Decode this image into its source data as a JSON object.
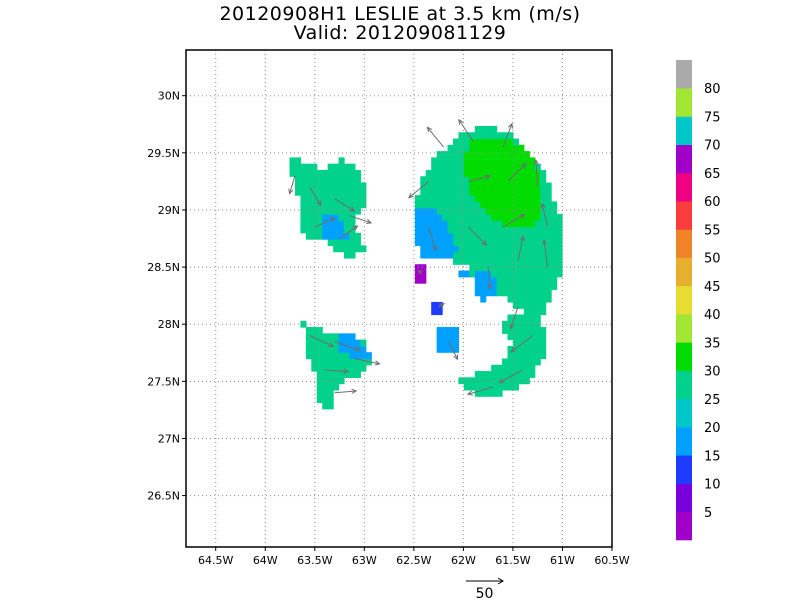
{
  "title_line1": "20120908H1 LESLIE at 3.5 km (m/s)",
  "title_line2": "Valid: 201209081129",
  "chart_data": {
    "type": "heatmap",
    "title": "20120908H1 LESLIE at 3.5 km (m/s)",
    "subtitle": "Valid: 201209081129",
    "xlabel": "",
    "ylabel": "",
    "x_range": [
      -64.8,
      -60.5
    ],
    "y_range": [
      26.05,
      30.4
    ],
    "x_ticks": [
      -64.5,
      -64,
      -63.5,
      -63,
      -62.5,
      -62,
      -61.5,
      -61,
      -60.5
    ],
    "x_tick_labels": [
      "64.5W",
      "64W",
      "63.5W",
      "63W",
      "62.5W",
      "62W",
      "61.5W",
      "61W",
      "60.5W"
    ],
    "y_ticks": [
      26.5,
      27,
      27.5,
      28,
      28.5,
      29,
      29.5,
      30
    ],
    "y_tick_labels": [
      "26.5N",
      "27N",
      "27.5N",
      "28N",
      "28.5N",
      "29N",
      "29.5N",
      "30N"
    ],
    "grid": true,
    "colorbar": {
      "labels": [
        "5",
        "10",
        "15",
        "20",
        "25",
        "30",
        "35",
        "40",
        "45",
        "50",
        "55",
        "60",
        "65",
        "70",
        "75",
        "80"
      ],
      "colors": [
        "#a000c8",
        "#7800dc",
        "#1e3cff",
        "#00a0ff",
        "#00c8c8",
        "#00d28c",
        "#00dc00",
        "#a0e632",
        "#e6dc32",
        "#e6af2d",
        "#f08228",
        "#fa3c3c",
        "#f00082",
        "#a000c8",
        "#00c8c8",
        "#a0e632",
        "#aaaaaa"
      ]
    },
    "reference_vector": {
      "label": "50",
      "value": 50
    },
    "regions": [
      {
        "name": "north-west",
        "value": 26,
        "poly": [
          [
            -63.75,
            29.48
          ],
          [
            -63.62,
            29.42
          ],
          [
            -63.42,
            29.35
          ],
          [
            -63.22,
            29.45
          ],
          [
            -63.08,
            29.38
          ],
          [
            -62.98,
            29.2
          ],
          [
            -63.02,
            29.0
          ],
          [
            -63.1,
            28.9
          ],
          [
            -63.05,
            28.75
          ],
          [
            -62.95,
            28.65
          ],
          [
            -63.2,
            28.58
          ],
          [
            -63.35,
            28.72
          ],
          [
            -63.62,
            28.78
          ],
          [
            -63.62,
            29.0
          ],
          [
            -63.72,
            29.2
          ]
        ]
      },
      {
        "name": "south-west",
        "value": 25,
        "poly": [
          [
            -63.62,
            28.02
          ],
          [
            -63.42,
            27.95
          ],
          [
            -63.18,
            27.9
          ],
          [
            -63.0,
            27.85
          ],
          [
            -62.95,
            27.65
          ],
          [
            -63.05,
            27.55
          ],
          [
            -63.22,
            27.52
          ],
          [
            -63.3,
            27.42
          ],
          [
            -63.35,
            27.25
          ],
          [
            -63.45,
            27.32
          ],
          [
            -63.5,
            27.55
          ],
          [
            -63.6,
            27.75
          ]
        ]
      },
      {
        "name": "north-east",
        "value": 27,
        "poly": [
          [
            -62.3,
            29.45
          ],
          [
            -62.05,
            29.65
          ],
          [
            -61.8,
            29.75
          ],
          [
            -61.55,
            29.68
          ],
          [
            -61.35,
            29.52
          ],
          [
            -61.2,
            29.35
          ],
          [
            -61.1,
            29.12
          ],
          [
            -61.0,
            28.9
          ],
          [
            -60.98,
            28.62
          ],
          [
            -61.05,
            28.38
          ],
          [
            -61.15,
            28.18
          ],
          [
            -61.22,
            28.0
          ],
          [
            -61.4,
            28.1
          ],
          [
            -61.55,
            28.22
          ],
          [
            -61.8,
            28.25
          ],
          [
            -61.95,
            28.5
          ],
          [
            -62.2,
            28.6
          ],
          [
            -62.45,
            28.72
          ],
          [
            -62.5,
            28.95
          ],
          [
            -62.45,
            29.2
          ]
        ]
      },
      {
        "name": "south-east",
        "value": 26,
        "poly": [
          [
            -61.55,
            28.1
          ],
          [
            -61.3,
            28.08
          ],
          [
            -61.15,
            27.95
          ],
          [
            -61.2,
            27.7
          ],
          [
            -61.35,
            27.5
          ],
          [
            -61.55,
            27.4
          ],
          [
            -61.82,
            27.38
          ],
          [
            -62.0,
            27.42
          ],
          [
            -62.05,
            27.52
          ],
          [
            -61.8,
            27.58
          ],
          [
            -61.6,
            27.68
          ],
          [
            -61.48,
            27.85
          ],
          [
            -61.6,
            27.95
          ]
        ]
      },
      {
        "name": "east-high-core",
        "value": 33,
        "poly": [
          [
            -61.95,
            29.6
          ],
          [
            -61.55,
            29.65
          ],
          [
            -61.3,
            29.45
          ],
          [
            -61.2,
            29.2
          ],
          [
            -61.22,
            28.9
          ],
          [
            -61.45,
            28.85
          ],
          [
            -61.7,
            28.9
          ],
          [
            -61.9,
            29.1
          ],
          [
            -62.0,
            29.35
          ]
        ]
      },
      {
        "name": "east-low-west",
        "value": 19,
        "poly": [
          [
            -62.48,
            29.05
          ],
          [
            -62.3,
            29.02
          ],
          [
            -62.15,
            28.85
          ],
          [
            -62.05,
            28.65
          ],
          [
            -62.2,
            28.55
          ],
          [
            -62.42,
            28.6
          ],
          [
            -62.5,
            28.8
          ]
        ]
      },
      {
        "name": "east-low-south",
        "value": 19,
        "poly": [
          [
            -61.85,
            28.5
          ],
          [
            -61.7,
            28.45
          ],
          [
            -61.65,
            28.3
          ],
          [
            -61.8,
            28.22
          ],
          [
            -61.9,
            28.32
          ]
        ]
      },
      {
        "name": "west-low",
        "value": 19,
        "poly": [
          [
            -63.45,
            29.0
          ],
          [
            -63.25,
            28.95
          ],
          [
            -63.15,
            28.78
          ],
          [
            -63.3,
            28.72
          ],
          [
            -63.45,
            28.8
          ]
        ]
      },
      {
        "name": "sw-low",
        "value": 19,
        "poly": [
          [
            -63.3,
            27.95
          ],
          [
            -63.05,
            27.88
          ],
          [
            -62.95,
            27.72
          ],
          [
            -63.1,
            27.68
          ],
          [
            -63.25,
            27.78
          ]
        ]
      },
      {
        "name": "square-1",
        "value": 2,
        "poly": [
          [
            -62.5,
            28.52
          ],
          [
            -62.38,
            28.52
          ],
          [
            -62.38,
            28.38
          ],
          [
            -62.5,
            28.38
          ]
        ]
      },
      {
        "name": "square-2",
        "value": 12,
        "poly": [
          [
            -62.32,
            28.22
          ],
          [
            -62.2,
            28.22
          ],
          [
            -62.2,
            28.1
          ],
          [
            -62.32,
            28.1
          ]
        ]
      },
      {
        "name": "square-3",
        "value": 18,
        "poly": [
          [
            -62.25,
            27.95
          ],
          [
            -62.05,
            27.95
          ],
          [
            -62.05,
            27.75
          ],
          [
            -62.25,
            27.75
          ]
        ]
      },
      {
        "name": "square-4",
        "value": 19,
        "poly": [
          [
            -62.05,
            28.48
          ],
          [
            -61.95,
            28.48
          ],
          [
            -61.95,
            28.42
          ],
          [
            -62.05,
            28.42
          ]
        ]
      }
    ],
    "vectors": [
      {
        "lon": -63.7,
        "lat": 29.3,
        "u": -6,
        "v": -20
      },
      {
        "lon": -63.55,
        "lat": 29.2,
        "u": 12,
        "v": -20
      },
      {
        "lon": -63.3,
        "lat": 29.1,
        "u": 22,
        "v": -14
      },
      {
        "lon": -63.15,
        "lat": 28.95,
        "u": 24,
        "v": -8
      },
      {
        "lon": -63.5,
        "lat": 28.85,
        "u": 22,
        "v": 10
      },
      {
        "lon": -63.25,
        "lat": 28.75,
        "u": 20,
        "v": 14
      },
      {
        "lon": -63.55,
        "lat": 27.9,
        "u": 26,
        "v": -12
      },
      {
        "lon": -63.3,
        "lat": 27.85,
        "u": 28,
        "v": -10
      },
      {
        "lon": -63.1,
        "lat": 27.7,
        "u": 28,
        "v": -6
      },
      {
        "lon": -63.4,
        "lat": 27.6,
        "u": 26,
        "v": -2
      },
      {
        "lon": -63.3,
        "lat": 27.4,
        "u": 24,
        "v": 2
      },
      {
        "lon": -62.2,
        "lat": 29.55,
        "u": -18,
        "v": 22
      },
      {
        "lon": -61.9,
        "lat": 29.6,
        "u": -16,
        "v": 24
      },
      {
        "lon": -61.6,
        "lat": 29.55,
        "u": 10,
        "v": 26
      },
      {
        "lon": -62.35,
        "lat": 29.25,
        "u": -22,
        "v": -18
      },
      {
        "lon": -61.95,
        "lat": 29.25,
        "u": 24,
        "v": 6
      },
      {
        "lon": -61.55,
        "lat": 29.25,
        "u": 20,
        "v": 20
      },
      {
        "lon": -61.25,
        "lat": 29.2,
        "u": -2,
        "v": 30
      },
      {
        "lon": -62.35,
        "lat": 28.85,
        "u": 8,
        "v": -26
      },
      {
        "lon": -61.95,
        "lat": 28.85,
        "u": 20,
        "v": -20
      },
      {
        "lon": -61.6,
        "lat": 28.85,
        "u": 24,
        "v": 14
      },
      {
        "lon": -61.15,
        "lat": 28.85,
        "u": -6,
        "v": 26
      },
      {
        "lon": -61.75,
        "lat": 28.5,
        "u": 2,
        "v": -24
      },
      {
        "lon": -61.45,
        "lat": 28.55,
        "u": 6,
        "v": 28
      },
      {
        "lon": -61.15,
        "lat": 28.5,
        "u": -4,
        "v": 30
      },
      {
        "lon": -61.45,
        "lat": 28.15,
        "u": -8,
        "v": -24
      },
      {
        "lon": -61.3,
        "lat": 27.9,
        "u": -24,
        "v": -18
      },
      {
        "lon": -61.4,
        "lat": 27.6,
        "u": -26,
        "v": -14
      },
      {
        "lon": -61.7,
        "lat": 27.45,
        "u": -28,
        "v": -8
      },
      {
        "lon": -62.15,
        "lat": 27.85,
        "u": 10,
        "v": -20
      },
      {
        "lon": -62.42,
        "lat": 28.45,
        "u": -4,
        "v": 2
      },
      {
        "lon": -62.25,
        "lat": 28.15,
        "u": 6,
        "v": 4
      }
    ]
  }
}
